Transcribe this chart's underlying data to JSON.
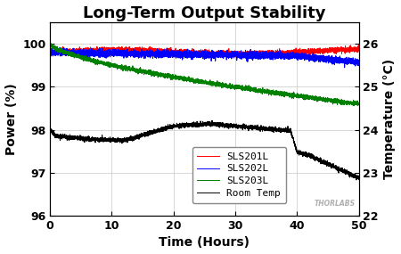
{
  "title": "Long-Term Output Stability",
  "xlabel": "Time (Hours)",
  "ylabel_left": "Power (%)",
  "ylabel_right": "Temperature (°C)",
  "xlim": [
    0,
    50
  ],
  "ylim_left": [
    96,
    100.5
  ],
  "ylim_right": [
    22,
    26.5
  ],
  "xticks": [
    0,
    10,
    20,
    30,
    40,
    50
  ],
  "yticks_left": [
    96,
    97,
    98,
    99,
    100
  ],
  "yticks_right": [
    22,
    23,
    24,
    25,
    26
  ],
  "legend_labels": [
    "SLS201L",
    "SLS202L",
    "SLS203L",
    "Room Temp"
  ],
  "background_color": "#ffffff",
  "grid_color": "#c8c8c8",
  "title_fontsize": 13,
  "label_fontsize": 10,
  "tick_fontsize": 9,
  "legend_fontsize": 8
}
